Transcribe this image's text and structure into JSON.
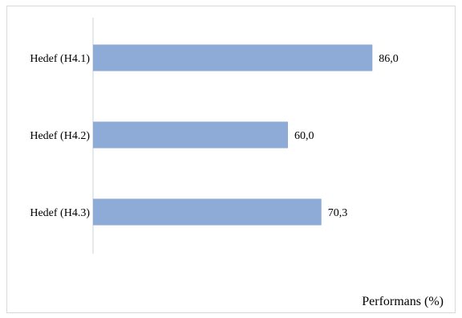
{
  "chart_data": {
    "type": "bar",
    "orientation": "horizontal",
    "categories": [
      "Hedef (H4.1)",
      "Hedef (H4.2)",
      "Hedef (H4.3)"
    ],
    "values": [
      86.0,
      60.0,
      70.3
    ],
    "value_labels": [
      "86,0",
      "60,0",
      "70,3"
    ],
    "xlabel": "Performans (%)",
    "ylabel": "",
    "title": "",
    "xlim": [
      0,
      100
    ],
    "grid": false,
    "legend": "none",
    "bar_color": "#8eaad6"
  }
}
